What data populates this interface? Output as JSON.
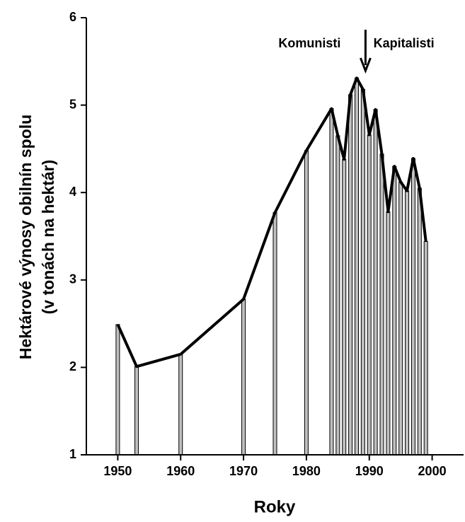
{
  "chart_data": {
    "type": "bar_line",
    "x_label": "Roky",
    "y_label": [
      "Hektárové výnosy obilnín spolu",
      "(v tonách na hektár)"
    ],
    "annotations": [
      {
        "text": "Komunisti",
        "x": 1980.5,
        "y": 5.7
      },
      {
        "text": "Kapitalisti",
        "x": 1995.5,
        "y": 5.7
      }
    ],
    "arrow_x": 1989.4,
    "x": [
      1950,
      1953,
      1960,
      1970,
      1975,
      1980,
      1984,
      1985,
      1986,
      1987,
      1988,
      1989,
      1990,
      1991,
      1992,
      1993,
      1994,
      1995,
      1996,
      1997,
      1998,
      1999
    ],
    "values": [
      2.49,
      2.01,
      2.15,
      2.78,
      3.77,
      4.48,
      4.96,
      4.65,
      4.38,
      5.12,
      5.31,
      5.18,
      4.66,
      4.95,
      4.44,
      3.78,
      4.3,
      4.12,
      4.02,
      4.39,
      4.05,
      3.44
    ],
    "bar_color": "#c0c0c0",
    "line_color": "#000000",
    "xlim": [
      1945,
      2005
    ],
    "ylim": [
      1,
      6
    ],
    "xticks": [
      1950,
      1960,
      1970,
      1980,
      1990,
      2000
    ],
    "yticks": [
      1,
      2,
      3,
      4,
      5,
      6
    ]
  }
}
